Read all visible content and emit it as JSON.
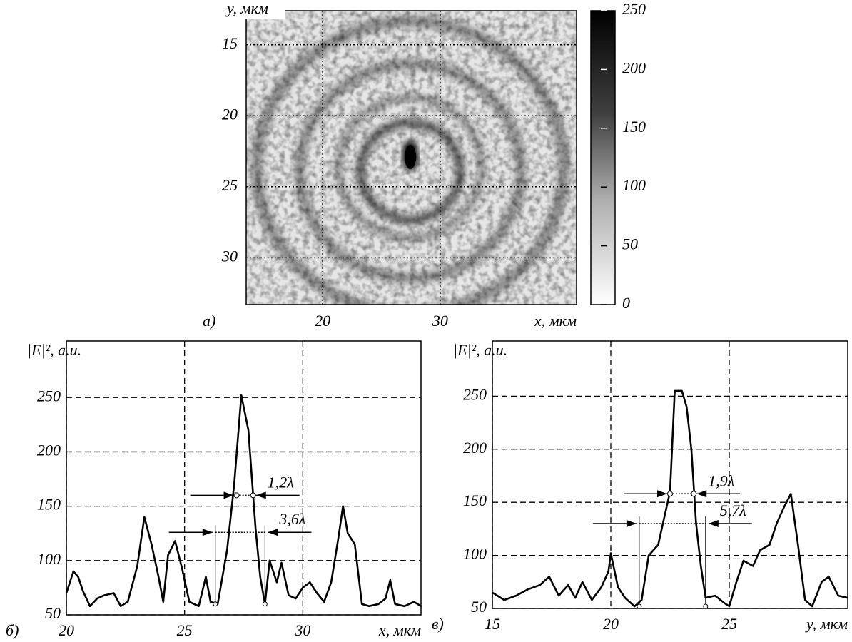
{
  "chart_data": [
    {
      "type": "heatmap",
      "panel_label": "а)",
      "xlabel": "x, мкм",
      "ylabel": "y, мкм",
      "xlim": [
        13.5,
        41.6
      ],
      "ylim": [
        33.3,
        12.6
      ],
      "xticks": [
        20,
        30
      ],
      "yticks": [
        15,
        20,
        25,
        30
      ],
      "grid": true,
      "colorbar": {
        "lim": [
          0,
          250
        ],
        "ticks": [
          0,
          50,
          100,
          150,
          200,
          250
        ]
      }
    },
    {
      "type": "line",
      "panel_label": "б)",
      "xlabel": "x, мкм",
      "ylabel": "|E|², a.u.",
      "xlim": [
        20,
        35
      ],
      "ylim": [
        50,
        302
      ],
      "xticks": [
        20,
        25,
        30
      ],
      "yticks": [
        50,
        100,
        150,
        200,
        250
      ],
      "grid": true,
      "color": "#000000",
      "x": [
        20,
        20.3,
        20.5,
        20.7,
        21,
        21.3,
        21.6,
        22,
        22.3,
        22.6,
        23,
        23.3,
        23.6,
        23.9,
        24.1,
        24.3,
        24.6,
        24.9,
        25.2,
        25.6,
        25.9,
        26.1,
        26.4,
        26.8,
        27.1,
        27.4,
        27.7,
        28,
        28.2,
        28.4,
        28.6,
        28.9,
        29.1,
        29.4,
        29.7,
        30,
        30.3,
        30.6,
        30.9,
        31.2,
        31.5,
        31.7,
        31.9,
        32.2,
        32.5,
        32.8,
        33.2,
        33.5,
        33.7,
        33.9,
        34.3,
        34.7,
        35
      ],
      "values": [
        70,
        90,
        85,
        72,
        58,
        65,
        68,
        70,
        58,
        62,
        95,
        140,
        115,
        85,
        62,
        105,
        118,
        92,
        62,
        58,
        85,
        62,
        60,
        110,
        170,
        252,
        220,
        130,
        85,
        60,
        100,
        80,
        98,
        68,
        65,
        75,
        80,
        70,
        62,
        80,
        120,
        150,
        125,
        115,
        60,
        58,
        60,
        65,
        82,
        60,
        58,
        62,
        58
      ],
      "annotations": [
        {
          "text": "1,2λ",
          "x1": 27.2,
          "x2": 27.9,
          "y": 160
        },
        {
          "text": "3,6λ",
          "x1": 26.3,
          "x2": 28.4,
          "y": 126,
          "base": 60
        }
      ]
    },
    {
      "type": "line",
      "panel_label": "в)",
      "xlabel": "y, мкм",
      "ylabel": "|E|², a.u.",
      "xlim": [
        15,
        30
      ],
      "ylim": [
        50,
        302
      ],
      "xticks": [
        15,
        20,
        25
      ],
      "yticks": [
        50,
        100,
        150,
        200,
        250
      ],
      "grid": true,
      "color": "#000000",
      "x": [
        15,
        15.5,
        16,
        16.5,
        17,
        17.4,
        17.8,
        18.2,
        18.5,
        18.8,
        19.2,
        19.6,
        19.9,
        20,
        20.3,
        20.6,
        21,
        21.3,
        21.6,
        22,
        22.2,
        22.5,
        22.7,
        23,
        23.2,
        23.4,
        23.6,
        23.8,
        24,
        24.4,
        24.8,
        25,
        25.3,
        25.6,
        26,
        26.3,
        26.7,
        27,
        27.3,
        27.6,
        27.9,
        28.2,
        28.5,
        28.9,
        29.2,
        29.6,
        30
      ],
      "values": [
        65,
        58,
        62,
        68,
        72,
        80,
        62,
        72,
        60,
        75,
        58,
        70,
        85,
        102,
        70,
        60,
        52,
        58,
        100,
        110,
        130,
        160,
        255,
        255,
        240,
        200,
        130,
        90,
        60,
        62,
        55,
        52,
        75,
        95,
        90,
        105,
        110,
        130,
        145,
        158,
        110,
        58,
        52,
        75,
        80,
        62,
        60
      ],
      "annotations": [
        {
          "text": "1,9λ",
          "x1": 22.5,
          "x2": 23.5,
          "y": 158
        },
        {
          "text": "5,7λ",
          "x1": 21.2,
          "x2": 24,
          "y": 130,
          "base": 52
        }
      ]
    }
  ]
}
